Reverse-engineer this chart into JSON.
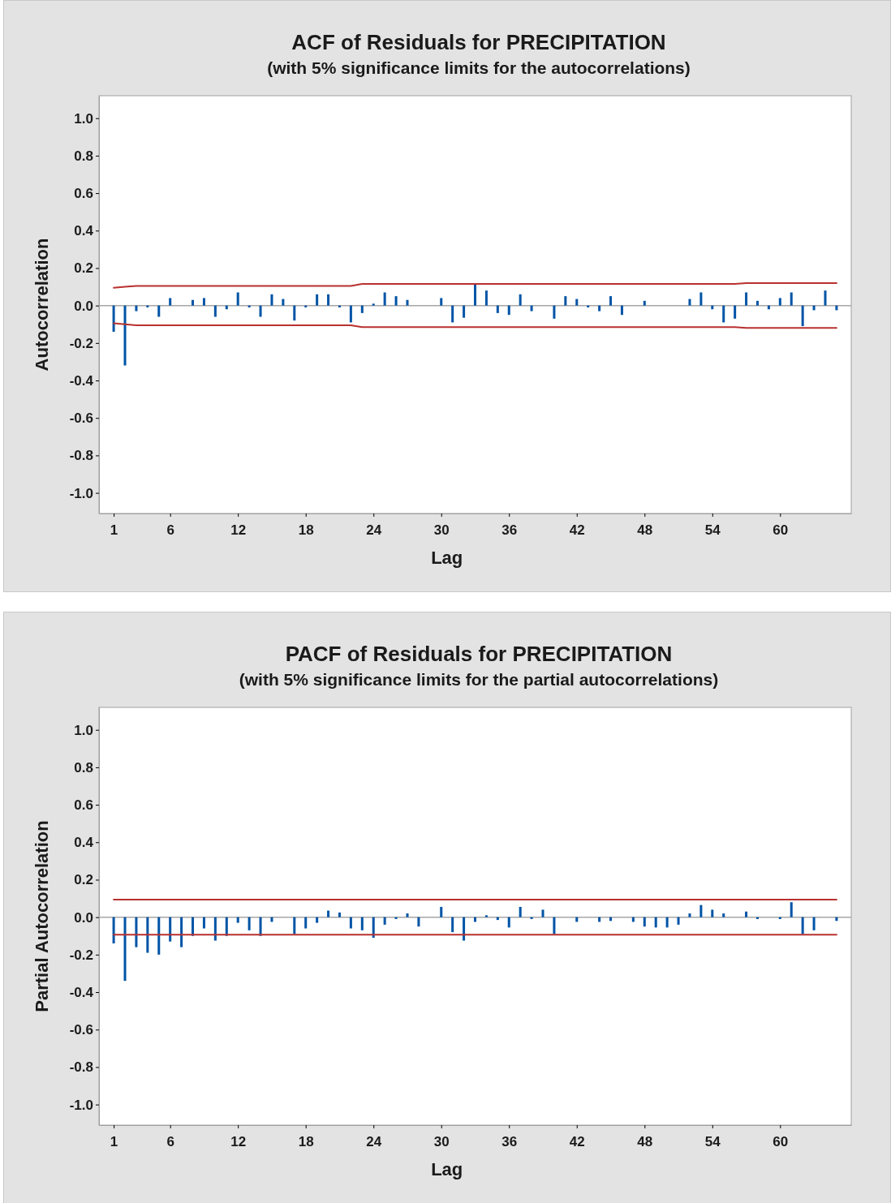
{
  "chart_data": [
    {
      "type": "bar",
      "title": "ACF of Residuals for PRECIPITATION",
      "subtitle": "(with 5% significance limits for the autocorrelations)",
      "xlabel": "Lag",
      "ylabel": "Autocorrelation",
      "x": [
        1,
        2,
        3,
        4,
        5,
        6,
        7,
        8,
        9,
        10,
        11,
        12,
        13,
        14,
        15,
        16,
        17,
        18,
        19,
        20,
        21,
        22,
        23,
        24,
        25,
        26,
        27,
        28,
        29,
        30,
        31,
        32,
        33,
        34,
        35,
        36,
        37,
        38,
        39,
        40,
        41,
        42,
        43,
        44,
        45,
        46,
        47,
        48,
        49,
        50,
        51,
        52,
        53,
        54,
        55,
        56,
        57,
        58,
        59,
        60,
        61,
        62,
        63,
        64,
        65
      ],
      "xlim": [
        -0.3,
        66.3
      ],
      "xticks": [
        1,
        6,
        12,
        18,
        24,
        30,
        36,
        42,
        48,
        54,
        60
      ],
      "ylim": [
        -1.11,
        1.12
      ],
      "yticks": [
        {
          "value": -1,
          "label": "-1.0"
        },
        {
          "value": -0.8,
          "label": "-0.8"
        },
        {
          "value": -0.6,
          "label": "-0.6"
        },
        {
          "value": -0.4,
          "label": "-0.4"
        },
        {
          "value": -0.2,
          "label": "-0.2"
        },
        {
          "value": 0,
          "label": "0.0"
        },
        {
          "value": 0.2,
          "label": "0.2"
        },
        {
          "value": 0.4,
          "label": "0.4"
        },
        {
          "value": 0.6,
          "label": "0.6"
        },
        {
          "value": 0.8,
          "label": "0.8"
        },
        {
          "value": 1,
          "label": "1.0"
        }
      ],
      "ref_lines": [
        {
          "axis": "y",
          "value": 0,
          "color": "#a6a6a6"
        }
      ],
      "series": [
        {
          "color": "#0054a6",
          "values": [
            -0.14,
            -0.32,
            -0.03,
            -0.01,
            -0.06,
            0.04,
            0,
            0.03,
            0.04,
            -0.06,
            -0.02,
            0.07,
            -0.01,
            -0.06,
            0.06,
            0.035,
            -0.08,
            -0.01,
            0.06,
            0.06,
            -0.01,
            -0.09,
            -0.04,
            0.01,
            0.07,
            0.05,
            0.03,
            0,
            0,
            0.04,
            -0.09,
            -0.065,
            0.115,
            0.08,
            -0.04,
            -0.05,
            0.06,
            -0.03,
            0,
            -0.07,
            0.05,
            0.035,
            -0.01,
            -0.03,
            0.05,
            -0.05,
            0,
            0.025,
            0,
            0,
            0,
            0.035,
            0.07,
            -0.02,
            -0.09,
            -0.07,
            0.07,
            0.025,
            -0.02,
            0.04,
            0.07,
            -0.11,
            -0.025,
            0.08,
            -0.025
          ]
        },
        {
          "type": "line",
          "color": "#b8312f",
          "x": [
            1,
            2,
            3,
            22,
            23,
            56,
            57,
            65
          ],
          "values": [
            0.095,
            0.1,
            0.105,
            0.105,
            0.115,
            0.115,
            0.12,
            0.12
          ]
        },
        {
          "type": "line",
          "color": "#b8312f",
          "x": [
            1,
            2,
            3,
            22,
            23,
            56,
            57,
            65
          ],
          "values": [
            -0.095,
            -0.1,
            -0.105,
            -0.105,
            -0.115,
            -0.115,
            -0.12,
            -0.12
          ]
        }
      ]
    },
    {
      "type": "bar",
      "title": "PACF of Residuals for PRECIPITATION",
      "subtitle": "(with 5% significance limits for the partial autocorrelations)",
      "xlabel": "Lag",
      "ylabel": "Partial Autocorrelation",
      "x": [
        1,
        2,
        3,
        4,
        5,
        6,
        7,
        8,
        9,
        10,
        11,
        12,
        13,
        14,
        15,
        16,
        17,
        18,
        19,
        20,
        21,
        22,
        23,
        24,
        25,
        26,
        27,
        28,
        29,
        30,
        31,
        32,
        33,
        34,
        35,
        36,
        37,
        38,
        39,
        40,
        41,
        42,
        43,
        44,
        45,
        46,
        47,
        48,
        49,
        50,
        51,
        52,
        53,
        54,
        55,
        56,
        57,
        58,
        59,
        60,
        61,
        62,
        63,
        64,
        65
      ],
      "xlim": [
        -0.3,
        66.3
      ],
      "xticks": [
        1,
        6,
        12,
        18,
        24,
        30,
        36,
        42,
        48,
        54,
        60
      ],
      "ylim": [
        -1.11,
        1.12
      ],
      "yticks": [
        {
          "value": -1,
          "label": "-1.0"
        },
        {
          "value": -0.8,
          "label": "-0.8"
        },
        {
          "value": -0.6,
          "label": "-0.6"
        },
        {
          "value": -0.4,
          "label": "-0.4"
        },
        {
          "value": -0.2,
          "label": "-0.2"
        },
        {
          "value": 0,
          "label": "0.0"
        },
        {
          "value": 0.2,
          "label": "0.2"
        },
        {
          "value": 0.4,
          "label": "0.4"
        },
        {
          "value": 0.6,
          "label": "0.6"
        },
        {
          "value": 0.8,
          "label": "0.8"
        },
        {
          "value": 1,
          "label": "1.0"
        }
      ],
      "ref_lines": [
        {
          "axis": "y",
          "value": 0,
          "color": "#a6a6a6"
        }
      ],
      "series": [
        {
          "color": "#0054a6",
          "values": [
            -0.14,
            -0.34,
            -0.16,
            -0.19,
            -0.2,
            -0.13,
            -0.16,
            -0.1,
            -0.06,
            -0.125,
            -0.1,
            -0.03,
            -0.07,
            -0.1,
            -0.025,
            0,
            -0.09,
            -0.06,
            -0.03,
            0.035,
            0.025,
            -0.06,
            -0.07,
            -0.11,
            -0.04,
            -0.01,
            0.02,
            -0.05,
            0,
            0.055,
            -0.08,
            -0.125,
            -0.025,
            0.01,
            -0.015,
            -0.055,
            0.055,
            -0.01,
            0.04,
            -0.09,
            0,
            -0.025,
            0,
            -0.025,
            -0.02,
            0,
            -0.025,
            -0.05,
            -0.055,
            -0.055,
            -0.04,
            0.02,
            0.065,
            0.04,
            0.02,
            0,
            0.03,
            -0.01,
            0,
            -0.01,
            0.08,
            -0.09,
            -0.07,
            0,
            -0.02
          ]
        },
        {
          "type": "line",
          "color": "#b8312f",
          "x": [
            1,
            65
          ],
          "values": [
            0.094,
            0.094
          ]
        },
        {
          "type": "line",
          "color": "#b8312f",
          "x": [
            1,
            65
          ],
          "values": [
            -0.094,
            -0.094
          ]
        }
      ]
    }
  ]
}
